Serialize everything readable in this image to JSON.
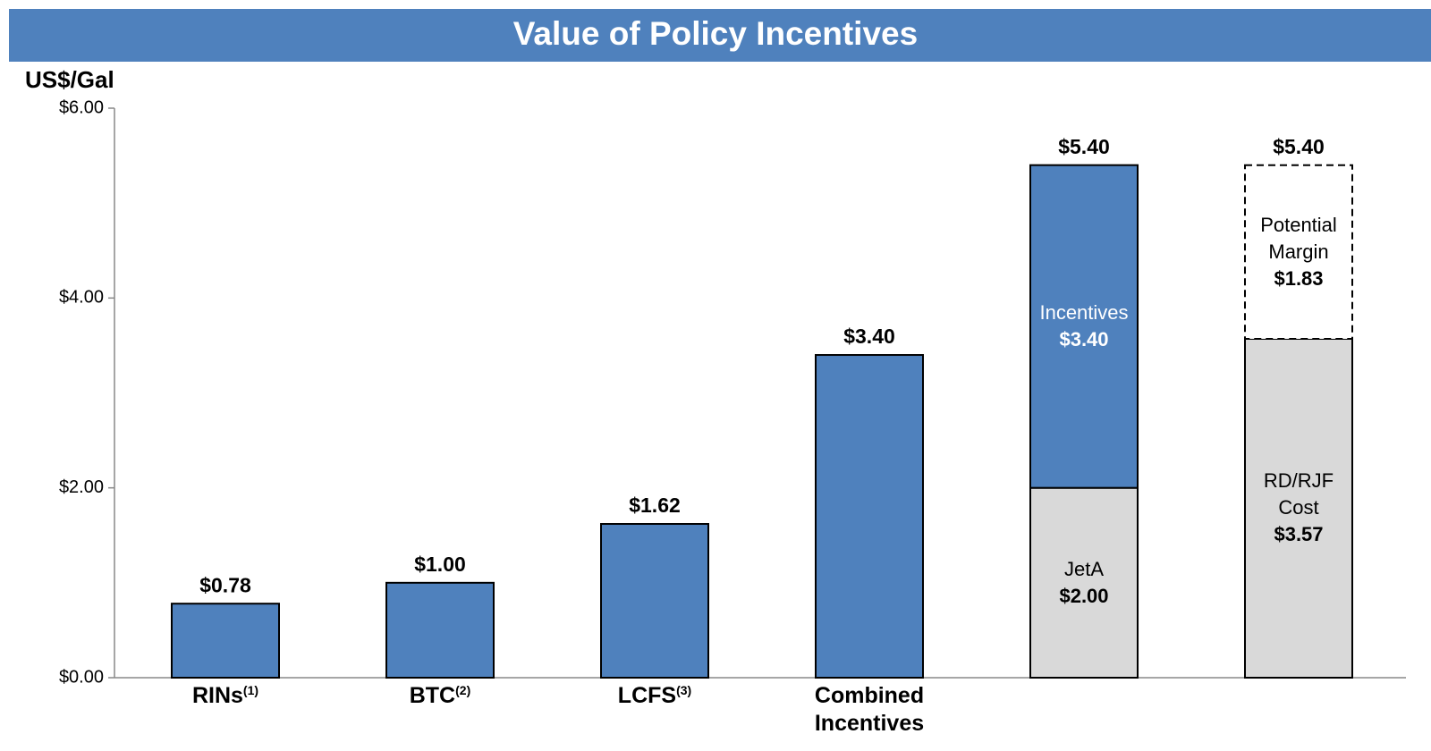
{
  "chart_data": {
    "type": "stacked_bar",
    "title": "Value of Policy Incentives",
    "y_label": "US$/Gal",
    "categories": [
      "RINs",
      "BTC",
      "LCFS",
      "Combined Incentives",
      null,
      null
    ],
    "footnote_marks": [
      "(1)",
      "(2)",
      "(3)",
      null,
      null,
      null
    ],
    "series": [
      {
        "color": "#d9d9d9",
        "border": "solid",
        "values": [
          null,
          null,
          null,
          null,
          2.0,
          3.57
        ],
        "segment_labels": [
          null,
          null,
          null,
          null,
          "JetA",
          "RD/RJF Cost"
        ],
        "value_labels": [
          null,
          null,
          null,
          null,
          "$2.00",
          "$3.57"
        ]
      },
      {
        "color": "#4f81bd",
        "border": "solid",
        "label_color": "#ffffff",
        "values": [
          0.78,
          1.0,
          1.62,
          3.4,
          3.4,
          null
        ],
        "segment_labels": [
          null,
          null,
          null,
          null,
          "Incentives",
          null
        ],
        "value_labels": [
          null,
          null,
          null,
          null,
          "$3.40",
          null
        ]
      },
      {
        "color": "#ffffff",
        "border": "dashed",
        "values": [
          null,
          null,
          null,
          null,
          null,
          1.83
        ],
        "segment_labels": [
          null,
          null,
          null,
          null,
          null,
          "Potential Margin"
        ],
        "value_labels": [
          null,
          null,
          null,
          null,
          null,
          "$1.83"
        ]
      }
    ],
    "totals": [
      0.78,
      1.0,
      1.62,
      3.4,
      5.4,
      5.4
    ],
    "total_labels": [
      "$0.78",
      "$1.00",
      "$1.62",
      "$3.40",
      "$5.40",
      "$5.40"
    ],
    "ylim": [
      0,
      6
    ],
    "yticks": [
      {
        "value": 0,
        "label": "$0.00"
      },
      {
        "value": 2,
        "label": "$2.00"
      },
      {
        "value": 4,
        "label": "$4.00"
      },
      {
        "value": 6,
        "label": "$6.00"
      }
    ],
    "grid": false
  }
}
